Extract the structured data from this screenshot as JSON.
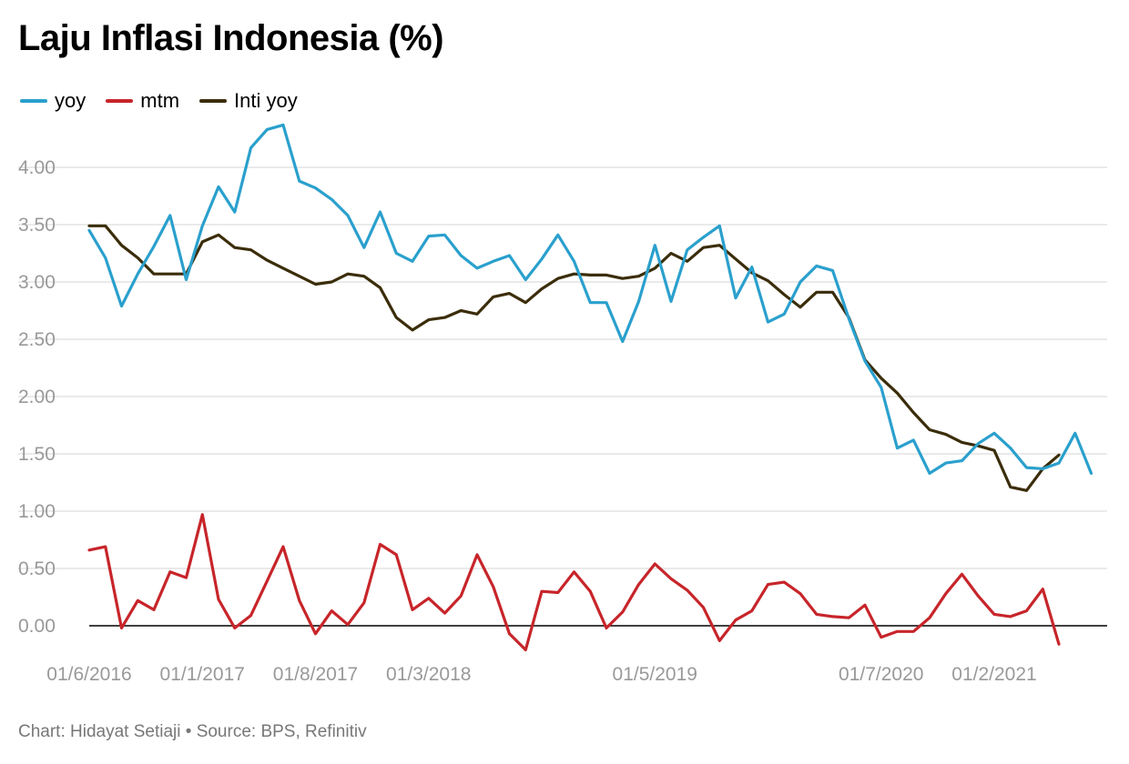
{
  "title": "Laju Inflasi Indonesia (%)",
  "footer": {
    "credit": "Chart: Hidayat Setiaji",
    "separator": "•",
    "source": "Source: BPS, Refinitiv"
  },
  "chart_data": {
    "type": "line",
    "title": "Laju Inflasi Indonesia (%)",
    "xlabel": "",
    "ylabel": "",
    "ylim": [
      -0.2,
      4.4
    ],
    "y_ticks": [
      0.0,
      0.5,
      1.0,
      1.5,
      2.0,
      2.5,
      3.0,
      3.5,
      4.0
    ],
    "y_tick_labels": [
      "0.00",
      "0.50",
      "1.00",
      "1.50",
      "2.00",
      "2.50",
      "3.00",
      "3.50",
      "4.00"
    ],
    "grid": true,
    "legend_position": "top-left",
    "x_start": "2016-06",
    "x_tick_labels": [
      {
        "index": 0,
        "label": "01/6/2016"
      },
      {
        "index": 7,
        "label": "01/1/2017"
      },
      {
        "index": 14,
        "label": "01/8/2017"
      },
      {
        "index": 21,
        "label": "01/3/2018"
      },
      {
        "index": 35,
        "label": "01/5/2019"
      },
      {
        "index": 49,
        "label": "01/7/2020"
      },
      {
        "index": 56,
        "label": "01/2/2021"
      }
    ],
    "series": [
      {
        "name": "yoy",
        "color": "#2aa0cd",
        "values": [
          3.45,
          3.21,
          2.79,
          3.07,
          3.31,
          3.58,
          3.02,
          3.49,
          3.83,
          3.61,
          4.17,
          4.33,
          4.37,
          3.88,
          3.82,
          3.72,
          3.58,
          3.3,
          3.61,
          3.25,
          3.18,
          3.4,
          3.41,
          3.23,
          3.12,
          3.18,
          3.23,
          3.02,
          3.2,
          3.41,
          3.18,
          2.82,
          2.82,
          2.48,
          2.83,
          3.32,
          2.83,
          3.28,
          3.39,
          3.49,
          2.86,
          3.13,
          2.65,
          2.72,
          3.0,
          3.14,
          3.1,
          2.68,
          2.31,
          2.08,
          1.55,
          1.62,
          1.33,
          1.42,
          1.44,
          1.59,
          1.68,
          1.55,
          1.38,
          1.37,
          1.42,
          1.68,
          1.33
        ]
      },
      {
        "name": "mtm",
        "color": "#c7252a",
        "values": [
          0.66,
          0.69,
          -0.02,
          0.22,
          0.14,
          0.47,
          0.42,
          0.97,
          0.23,
          -0.02,
          0.09,
          0.39,
          0.69,
          0.22,
          -0.07,
          0.13,
          0.01,
          0.2,
          0.71,
          0.62,
          0.14,
          0.24,
          0.11,
          0.26,
          0.62,
          0.34,
          -0.07,
          -0.21,
          0.3,
          0.29,
          0.47,
          0.3,
          -0.02,
          0.12,
          0.36,
          0.54,
          0.41,
          0.31,
          0.16,
          -0.13,
          0.05,
          0.13,
          0.36,
          0.38,
          0.28,
          0.1,
          0.08,
          0.07,
          0.18,
          -0.1,
          -0.05,
          -0.05,
          0.07,
          0.28,
          0.45,
          0.26,
          0.1,
          0.08,
          0.13,
          0.32,
          -0.16
        ]
      },
      {
        "name": "Inti yoy",
        "color": "#3b2d0a",
        "values": [
          3.49,
          3.49,
          3.32,
          3.21,
          3.07,
          3.07,
          3.07,
          3.35,
          3.41,
          3.3,
          3.28,
          3.19,
          3.12,
          3.05,
          2.98,
          3.0,
          3.07,
          3.05,
          2.95,
          2.69,
          2.58,
          2.67,
          2.69,
          2.75,
          2.72,
          2.87,
          2.9,
          2.82,
          2.94,
          3.03,
          3.07,
          3.06,
          3.06,
          3.03,
          3.05,
          3.12,
          3.25,
          3.18,
          3.3,
          3.32,
          3.2,
          3.08,
          3.01,
          2.89,
          2.78,
          2.91,
          2.91,
          2.69,
          2.32,
          2.16,
          2.03,
          1.86,
          1.71,
          1.67,
          1.6,
          1.57,
          1.53,
          1.21,
          1.18,
          1.37,
          1.49
        ]
      }
    ]
  }
}
